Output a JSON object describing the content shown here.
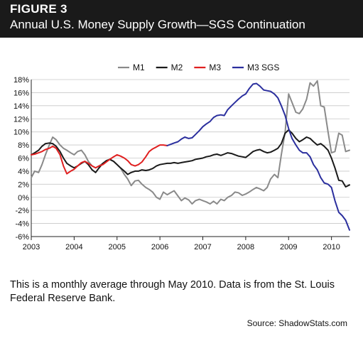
{
  "header": {
    "figure_label": "FIGURE 3",
    "title": "Annual U.S. Money Supply Growth—SGS Continuation"
  },
  "note": "This is a monthly average through May 2010. Data is from the St. Louis Federal Reserve Bank.",
  "source": "Source: ShadowStats.com",
  "colors": {
    "M1": "#8a8a8a",
    "M2": "#1a1a1a",
    "M3": "#e02020",
    "M3 SGS": "#2b2f9e"
  },
  "chart_data": {
    "type": "line",
    "title": "",
    "xlabel": "",
    "ylabel": "",
    "xlim": [
      2003.0,
      2010.42
    ],
    "ylim": [
      -6,
      18
    ],
    "yticks": [
      "18%",
      "16%",
      "14%",
      "12%",
      "10%",
      "8%",
      "6%",
      "4%",
      "2%",
      "0%",
      "-2%",
      "-4%",
      "-6%"
    ],
    "ytick_values": [
      18,
      16,
      14,
      12,
      10,
      8,
      6,
      4,
      2,
      0,
      -2,
      -4,
      -6
    ],
    "xticks": [
      "2003",
      "2004",
      "2005",
      "2006",
      "2007",
      "2008",
      "2009",
      "2010"
    ],
    "xtick_values": [
      2003,
      2004,
      2005,
      2006,
      2007,
      2008,
      2009,
      2010
    ],
    "legend_position": "top",
    "grid": "horizontal",
    "series": [
      {
        "name": "M1",
        "x": [
          2003.0,
          2003.08,
          2003.17,
          2003.25,
          2003.33,
          2003.42,
          2003.5,
          2003.58,
          2003.67,
          2003.75,
          2003.83,
          2003.92,
          2004.0,
          2004.08,
          2004.17,
          2004.25,
          2004.33,
          2004.42,
          2004.5,
          2004.58,
          2004.67,
          2004.75,
          2004.83,
          2004.92,
          2005.0,
          2005.08,
          2005.17,
          2005.25,
          2005.33,
          2005.42,
          2005.5,
          2005.58,
          2005.67,
          2005.75,
          2005.83,
          2005.92,
          2006.0,
          2006.08,
          2006.17,
          2006.25,
          2006.33,
          2006.42,
          2006.5,
          2006.58,
          2006.67,
          2006.75,
          2006.83,
          2006.92,
          2007.0,
          2007.08,
          2007.17,
          2007.25,
          2007.33,
          2007.42,
          2007.5,
          2007.58,
          2007.67,
          2007.75,
          2007.83,
          2007.92,
          2008.0,
          2008.08,
          2008.17,
          2008.25,
          2008.33,
          2008.42,
          2008.5,
          2008.58,
          2008.67,
          2008.75,
          2008.83,
          2008.92,
          2009.0,
          2009.08,
          2009.17,
          2009.25,
          2009.33,
          2009.42,
          2009.5,
          2009.58,
          2009.67,
          2009.75,
          2009.83,
          2009.92,
          2010.0,
          2010.08,
          2010.17,
          2010.25,
          2010.33,
          2010.42
        ],
        "values": [
          3.0,
          4.0,
          3.8,
          5.0,
          6.5,
          8.0,
          9.2,
          8.8,
          8.0,
          7.5,
          7.2,
          6.8,
          6.5,
          7.0,
          7.2,
          6.5,
          5.5,
          4.8,
          4.5,
          4.8,
          5.2,
          5.5,
          5.8,
          5.5,
          5.0,
          4.5,
          3.5,
          2.8,
          1.8,
          2.5,
          2.6,
          2.0,
          1.5,
          1.2,
          0.8,
          0.0,
          -0.3,
          0.8,
          0.4,
          0.7,
          1.0,
          0.2,
          -0.5,
          -0.1,
          -0.4,
          -1.0,
          -0.5,
          -0.3,
          -0.5,
          -0.7,
          -1.0,
          -0.6,
          -1.0,
          -0.3,
          -0.5,
          0.0,
          0.3,
          0.8,
          0.7,
          0.3,
          0.5,
          0.8,
          1.2,
          1.5,
          1.3,
          1.0,
          1.5,
          2.8,
          3.5,
          3.0,
          6.5,
          10.0,
          15.8,
          14.5,
          13.0,
          12.8,
          13.5,
          15.0,
          17.5,
          17.0,
          17.8,
          14.0,
          13.8,
          10.0,
          6.8,
          7.0,
          9.8,
          9.5,
          7.0,
          7.2
        ]
      },
      {
        "name": "M2",
        "x": [
          2003.0,
          2003.08,
          2003.17,
          2003.25,
          2003.33,
          2003.42,
          2003.5,
          2003.58,
          2003.67,
          2003.75,
          2003.83,
          2003.92,
          2004.0,
          2004.08,
          2004.17,
          2004.25,
          2004.33,
          2004.42,
          2004.5,
          2004.58,
          2004.67,
          2004.75,
          2004.83,
          2004.92,
          2005.0,
          2005.08,
          2005.17,
          2005.25,
          2005.33,
          2005.42,
          2005.5,
          2005.58,
          2005.67,
          2005.75,
          2005.83,
          2005.92,
          2006.0,
          2006.08,
          2006.17,
          2006.25,
          2006.33,
          2006.42,
          2006.5,
          2006.58,
          2006.67,
          2006.75,
          2006.83,
          2006.92,
          2007.0,
          2007.08,
          2007.17,
          2007.25,
          2007.33,
          2007.42,
          2007.5,
          2007.58,
          2007.67,
          2007.75,
          2007.83,
          2007.92,
          2008.0,
          2008.08,
          2008.17,
          2008.25,
          2008.33,
          2008.42,
          2008.5,
          2008.58,
          2008.67,
          2008.75,
          2008.83,
          2008.92,
          2009.0,
          2009.08,
          2009.17,
          2009.25,
          2009.33,
          2009.42,
          2009.5,
          2009.58,
          2009.67,
          2009.75,
          2009.83,
          2009.92,
          2010.0,
          2010.08,
          2010.17,
          2010.25,
          2010.33,
          2010.42
        ],
        "values": [
          6.5,
          6.8,
          7.2,
          7.8,
          8.2,
          8.3,
          8.2,
          7.8,
          7.0,
          6.0,
          5.2,
          4.8,
          4.5,
          4.8,
          5.2,
          5.5,
          5.0,
          4.2,
          3.8,
          4.5,
          5.2,
          5.6,
          5.8,
          5.5,
          5.0,
          4.5,
          4.0,
          3.5,
          3.8,
          4.0,
          4.0,
          4.2,
          4.1,
          4.2,
          4.4,
          4.8,
          5.0,
          5.1,
          5.2,
          5.2,
          5.3,
          5.2,
          5.3,
          5.4,
          5.5,
          5.6,
          5.8,
          5.9,
          6.0,
          6.2,
          6.3,
          6.5,
          6.6,
          6.4,
          6.6,
          6.8,
          6.7,
          6.5,
          6.3,
          6.2,
          6.1,
          6.5,
          7.0,
          7.2,
          7.3,
          7.0,
          6.8,
          6.9,
          7.2,
          7.5,
          8.2,
          9.8,
          10.3,
          9.8,
          9.0,
          8.5,
          8.8,
          9.2,
          9.0,
          8.5,
          8.0,
          8.2,
          7.8,
          7.2,
          6.0,
          4.5,
          2.6,
          2.5,
          1.6,
          1.9
        ]
      },
      {
        "name": "M3",
        "x": [
          2003.0,
          2003.08,
          2003.17,
          2003.25,
          2003.33,
          2003.42,
          2003.5,
          2003.58,
          2003.67,
          2003.75,
          2003.83,
          2003.92,
          2004.0,
          2004.08,
          2004.17,
          2004.25,
          2004.33,
          2004.42,
          2004.5,
          2004.58,
          2004.67,
          2004.75,
          2004.83,
          2004.92,
          2005.0,
          2005.08,
          2005.17,
          2005.25,
          2005.33,
          2005.42,
          2005.5,
          2005.58,
          2005.67,
          2005.75,
          2005.83,
          2005.92,
          2006.0,
          2006.08,
          2006.17
        ],
        "values": [
          6.5,
          6.6,
          6.8,
          7.0,
          7.3,
          7.5,
          7.8,
          7.5,
          6.5,
          4.8,
          3.6,
          4.0,
          4.3,
          4.8,
          5.3,
          5.5,
          5.2,
          4.8,
          4.5,
          4.8,
          5.0,
          5.4,
          5.8,
          6.2,
          6.5,
          6.3,
          6.0,
          5.6,
          5.0,
          4.8,
          5.0,
          5.4,
          6.2,
          7.0,
          7.4,
          7.7,
          8.0,
          8.0,
          7.9
        ]
      },
      {
        "name": "M3 SGS",
        "x": [
          2006.17,
          2006.25,
          2006.33,
          2006.42,
          2006.5,
          2006.58,
          2006.67,
          2006.75,
          2006.83,
          2006.92,
          2007.0,
          2007.08,
          2007.17,
          2007.25,
          2007.33,
          2007.42,
          2007.5,
          2007.58,
          2007.67,
          2007.75,
          2007.83,
          2007.92,
          2008.0,
          2008.08,
          2008.17,
          2008.25,
          2008.33,
          2008.42,
          2008.5,
          2008.58,
          2008.67,
          2008.75,
          2008.83,
          2008.92,
          2009.0,
          2009.08,
          2009.17,
          2009.25,
          2009.33,
          2009.42,
          2009.5,
          2009.58,
          2009.67,
          2009.75,
          2009.83,
          2009.92,
          2010.0,
          2010.08,
          2010.17,
          2010.25,
          2010.33,
          2010.42
        ],
        "values": [
          7.9,
          8.1,
          8.3,
          8.5,
          8.9,
          9.2,
          9.0,
          9.1,
          9.6,
          10.2,
          10.8,
          11.2,
          11.6,
          12.2,
          12.5,
          12.6,
          12.5,
          13.4,
          14.0,
          14.5,
          15.0,
          15.5,
          15.8,
          16.6,
          17.3,
          17.4,
          17.0,
          16.4,
          16.3,
          16.2,
          15.8,
          15.2,
          14.0,
          12.5,
          10.5,
          9.0,
          8.0,
          7.2,
          6.8,
          6.8,
          6.2,
          5.0,
          4.2,
          3.0,
          2.2,
          2.0,
          1.5,
          -0.5,
          -2.3,
          -2.8,
          -3.5,
          -5.0
        ]
      }
    ]
  }
}
